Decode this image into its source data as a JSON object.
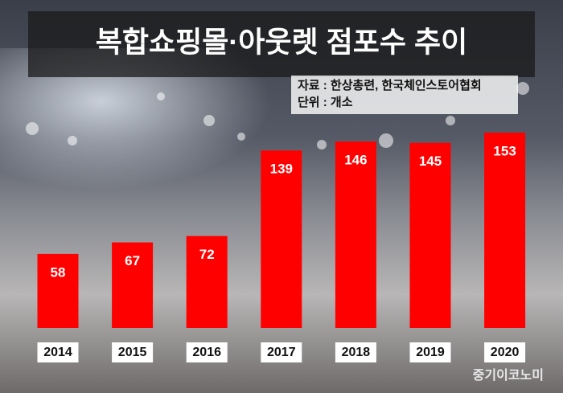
{
  "chart_data": {
    "type": "bar",
    "title": "복합쇼핑몰·아웃렛 점포수 추이",
    "source": "자료 : 한상총련, 한국체인스토어협회",
    "unit": "단위 : 개소",
    "categories": [
      "2014",
      "2015",
      "2016",
      "2017",
      "2018",
      "2019",
      "2020"
    ],
    "values": [
      58,
      67,
      72,
      139,
      146,
      145,
      153
    ],
    "color": "#ff0000",
    "watermark": "중기이코노미"
  }
}
